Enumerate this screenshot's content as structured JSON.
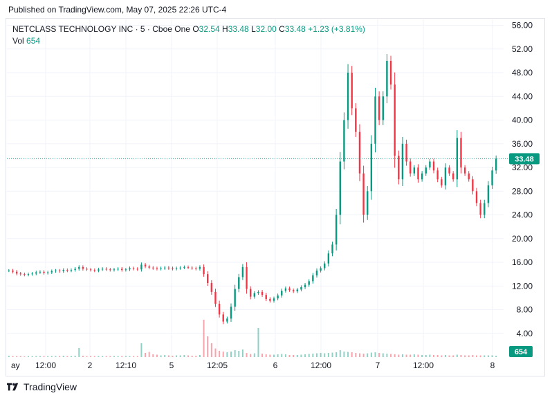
{
  "header": {
    "published": "Published on TradingView.com, May 07, 2025 22:26 UTC-4"
  },
  "legend": {
    "symbol": "NETCLASS TECHNOLOGY INC · 5 · Cboe One",
    "o_label": "O",
    "o_value": "32.54",
    "h_label": "H",
    "h_value": "33.48",
    "l_label": "L",
    "l_value": "32.00",
    "c_label": "C",
    "c_value": "33.48",
    "change": "+1.23 (+3.81%)",
    "vol_label": "Vol",
    "vol_value": "654"
  },
  "footer": {
    "brand": "TradingView"
  },
  "colors": {
    "up": "#089981",
    "down": "#f23645",
    "grid": "#f0f3fa",
    "axis_text": "#131722",
    "price_tag": "#089981"
  },
  "chart_data": {
    "type": "candlestick",
    "ylim": [
      0,
      57
    ],
    "y_ticks": [
      "56.00",
      "52.00",
      "48.00",
      "44.00",
      "40.00",
      "36.00",
      "32.00",
      "28.00",
      "24.00",
      "20.00",
      "16.00",
      "12.00",
      "8.00",
      "4.00"
    ],
    "x_ticks": [
      "ay",
      "12:00",
      "2",
      "12:10",
      "5",
      "12:05",
      "6",
      "12:00",
      "7",
      "12:00",
      "8"
    ],
    "last_price": 33.48,
    "last_price_label": "33.48",
    "last_volume": 654,
    "last_volume_label": "654",
    "series_close": [
      14.6,
      14.4,
      14.1,
      14.0,
      13.9,
      14.0,
      14.1,
      14.3,
      14.4,
      14.2,
      14.3,
      14.5,
      14.6,
      14.5,
      14.7,
      14.6,
      14.7,
      14.9,
      15.2,
      14.9,
      14.8,
      14.7,
      14.6,
      14.8,
      14.9,
      14.8,
      14.7,
      14.8,
      14.9,
      14.7,
      14.8,
      15.0,
      14.9,
      14.8,
      15.6,
      15.3,
      15.1,
      15.0,
      14.9,
      15.0,
      15.1,
      15.0,
      14.9,
      15.0,
      15.1,
      15.2,
      15.1,
      15.0,
      14.9,
      15.2,
      14.0,
      12.5,
      11.0,
      9.0,
      7.2,
      6.0,
      6.5,
      8.5,
      11.5,
      13.5,
      15.2,
      11.5,
      10.2,
      10.8,
      11.0,
      10.5,
      9.8,
      9.5,
      9.9,
      10.4,
      11.2,
      11.6,
      11.3,
      11.1,
      11.4,
      11.8,
      12.2,
      12.8,
      13.8,
      14.6,
      15.0,
      15.8,
      17.5,
      19.0,
      24.0,
      33.0,
      40.0,
      48.0,
      42.0,
      38.0,
      31.0,
      24.0,
      28.0,
      36.0,
      44.0,
      40.0,
      44.0,
      50.0,
      46.0,
      34.0,
      30.0,
      36.0,
      33.0,
      31.0,
      32.0,
      30.0,
      31.0,
      32.0,
      33.0,
      31.5,
      30.0,
      29.0,
      32.0,
      31.0,
      30.0,
      37.0,
      32.0,
      31.0,
      30.0,
      28.0,
      26.0,
      24.0,
      26.0,
      29.0,
      31.5,
      33.48
    ],
    "volumes": [
      0.4,
      0.3,
      0.3,
      0.3,
      0.2,
      0.3,
      0.3,
      0.3,
      0.3,
      0.3,
      0.3,
      0.3,
      0.3,
      0.3,
      0.4,
      0.3,
      0.3,
      0.4,
      2.6,
      0.4,
      0.3,
      0.3,
      0.3,
      0.3,
      0.3,
      0.3,
      0.3,
      0.3,
      0.3,
      0.3,
      0.3,
      0.3,
      0.3,
      0.3,
      4.0,
      1.2,
      1.5,
      0.8,
      0.7,
      0.5,
      0.6,
      0.5,
      0.4,
      0.5,
      0.5,
      0.6,
      0.5,
      0.4,
      0.4,
      0.6,
      10.8,
      6.0,
      4.0,
      2.5,
      1.8,
      1.6,
      1.4,
      1.6,
      2.0,
      1.8,
      2.2,
      1.2,
      0.9,
      1.1,
      8.4,
      1.0,
      0.8,
      0.7,
      0.7,
      0.8,
      0.9,
      0.8,
      0.6,
      0.6,
      0.6,
      0.7,
      0.8,
      0.9,
      1.0,
      1.1,
      1.2,
      1.1,
      1.2,
      1.3,
      1.4,
      2.0,
      1.6,
      1.5,
      1.4,
      1.2,
      1.1,
      1.0,
      1.1,
      1.3,
      1.4,
      1.2,
      1.1,
      1.0,
      0.9,
      0.8,
      0.7,
      0.8,
      0.7,
      0.7,
      0.8,
      0.7,
      0.6,
      0.6,
      0.7,
      0.6,
      0.6,
      0.5,
      0.6,
      0.5,
      0.5,
      0.7,
      0.6,
      0.5,
      0.5,
      0.6,
      0.5,
      0.5,
      0.5,
      0.5,
      0.5,
      0.4
    ]
  }
}
